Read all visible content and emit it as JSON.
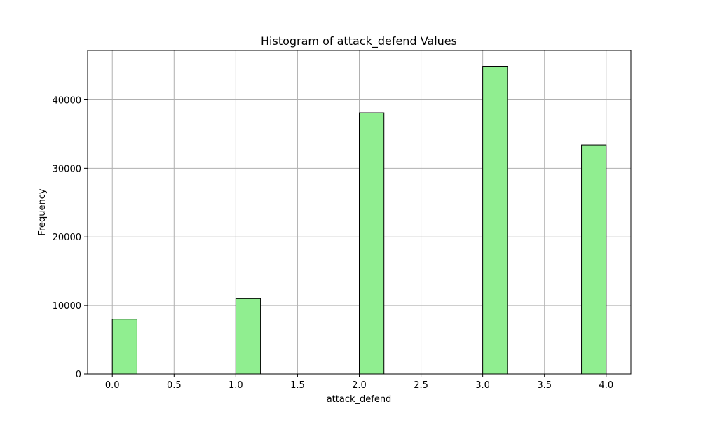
{
  "chart_data": {
    "type": "bar",
    "title": "Histogram of attack_defend Values",
    "xlabel": "attack_defend",
    "ylabel": "Frequency",
    "xlim": [
      -0.2,
      4.2
    ],
    "ylim": [
      0,
      47200
    ],
    "grid": true,
    "bar_color": "#90ee90",
    "edge_color": "#000000",
    "grid_color": "#b0b0b0",
    "bins": [
      {
        "x0": 0.0,
        "x1": 0.2,
        "value": 8000
      },
      {
        "x0": 1.0,
        "x1": 1.2,
        "value": 11000
      },
      {
        "x0": 2.0,
        "x1": 2.2,
        "value": 38100
      },
      {
        "x0": 3.0,
        "x1": 3.2,
        "value": 44900
      },
      {
        "x0": 3.8,
        "x1": 4.0,
        "value": 33400
      }
    ],
    "x_ticks": [
      {
        "value": 0.0,
        "label": "0.0"
      },
      {
        "value": 0.5,
        "label": "0.5"
      },
      {
        "value": 1.0,
        "label": "1.0"
      },
      {
        "value": 1.5,
        "label": "1.5"
      },
      {
        "value": 2.0,
        "label": "2.0"
      },
      {
        "value": 2.5,
        "label": "2.5"
      },
      {
        "value": 3.0,
        "label": "3.0"
      },
      {
        "value": 3.5,
        "label": "3.5"
      },
      {
        "value": 4.0,
        "label": "4.0"
      }
    ],
    "y_ticks": [
      {
        "value": 0,
        "label": "0"
      },
      {
        "value": 10000,
        "label": "10000"
      },
      {
        "value": 20000,
        "label": "20000"
      },
      {
        "value": 30000,
        "label": "30000"
      },
      {
        "value": 40000,
        "label": "40000"
      }
    ]
  }
}
